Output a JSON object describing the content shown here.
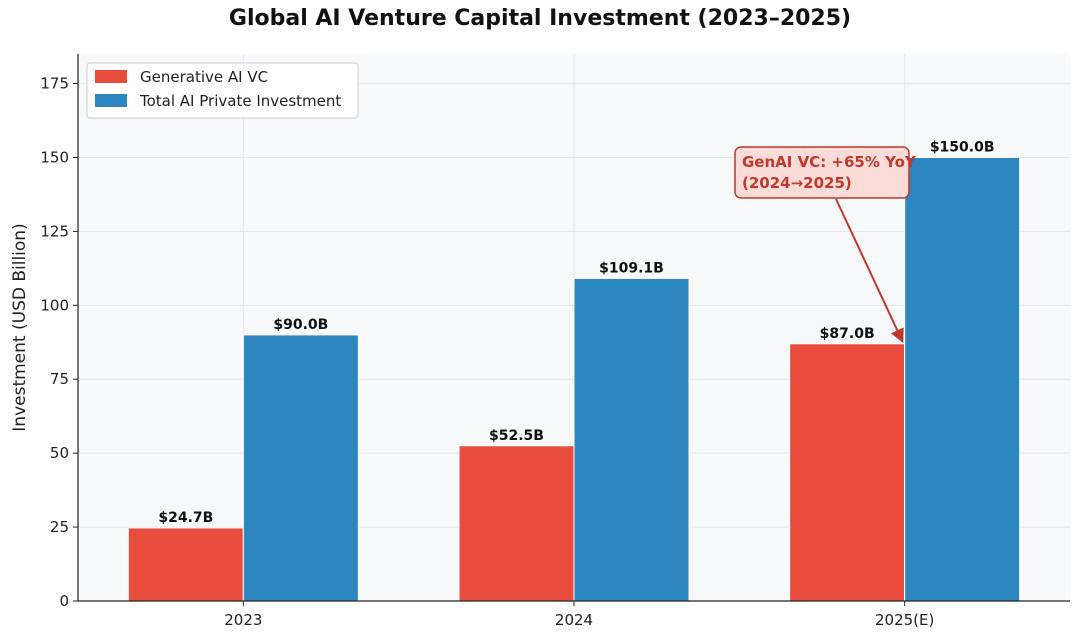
{
  "chart_data": {
    "type": "bar",
    "title": "Global AI Venture Capital Investment (2023–2025)",
    "xlabel": "",
    "ylabel": "Investment (USD Billion)",
    "ylim": [
      0,
      185
    ],
    "yticks": [
      0,
      25,
      50,
      75,
      100,
      125,
      150,
      175
    ],
    "grid": true,
    "legend_position": "top-left",
    "categories": [
      "2023",
      "2024",
      "2025(E)"
    ],
    "series": [
      {
        "name": "Generative AI VC",
        "color": "#e74c3c",
        "values": [
          24.7,
          52.5,
          87.0
        ],
        "labels": [
          "$24.7B",
          "$52.5B",
          "$87.0B"
        ]
      },
      {
        "name": "Total AI Private Investment",
        "color": "#2e86c1",
        "values": [
          90.0,
          109.1,
          150.0
        ],
        "labels": [
          "$90.0B",
          "$109.1B",
          "$150.0B"
        ]
      }
    ],
    "annotation": {
      "lines": [
        "GenAI VC: +65% YoY",
        "(2024→2025)"
      ],
      "color": "#c0392b",
      "background": "#fadbd8",
      "target_category": "2025(E)",
      "target_series": "Generative AI VC"
    }
  }
}
